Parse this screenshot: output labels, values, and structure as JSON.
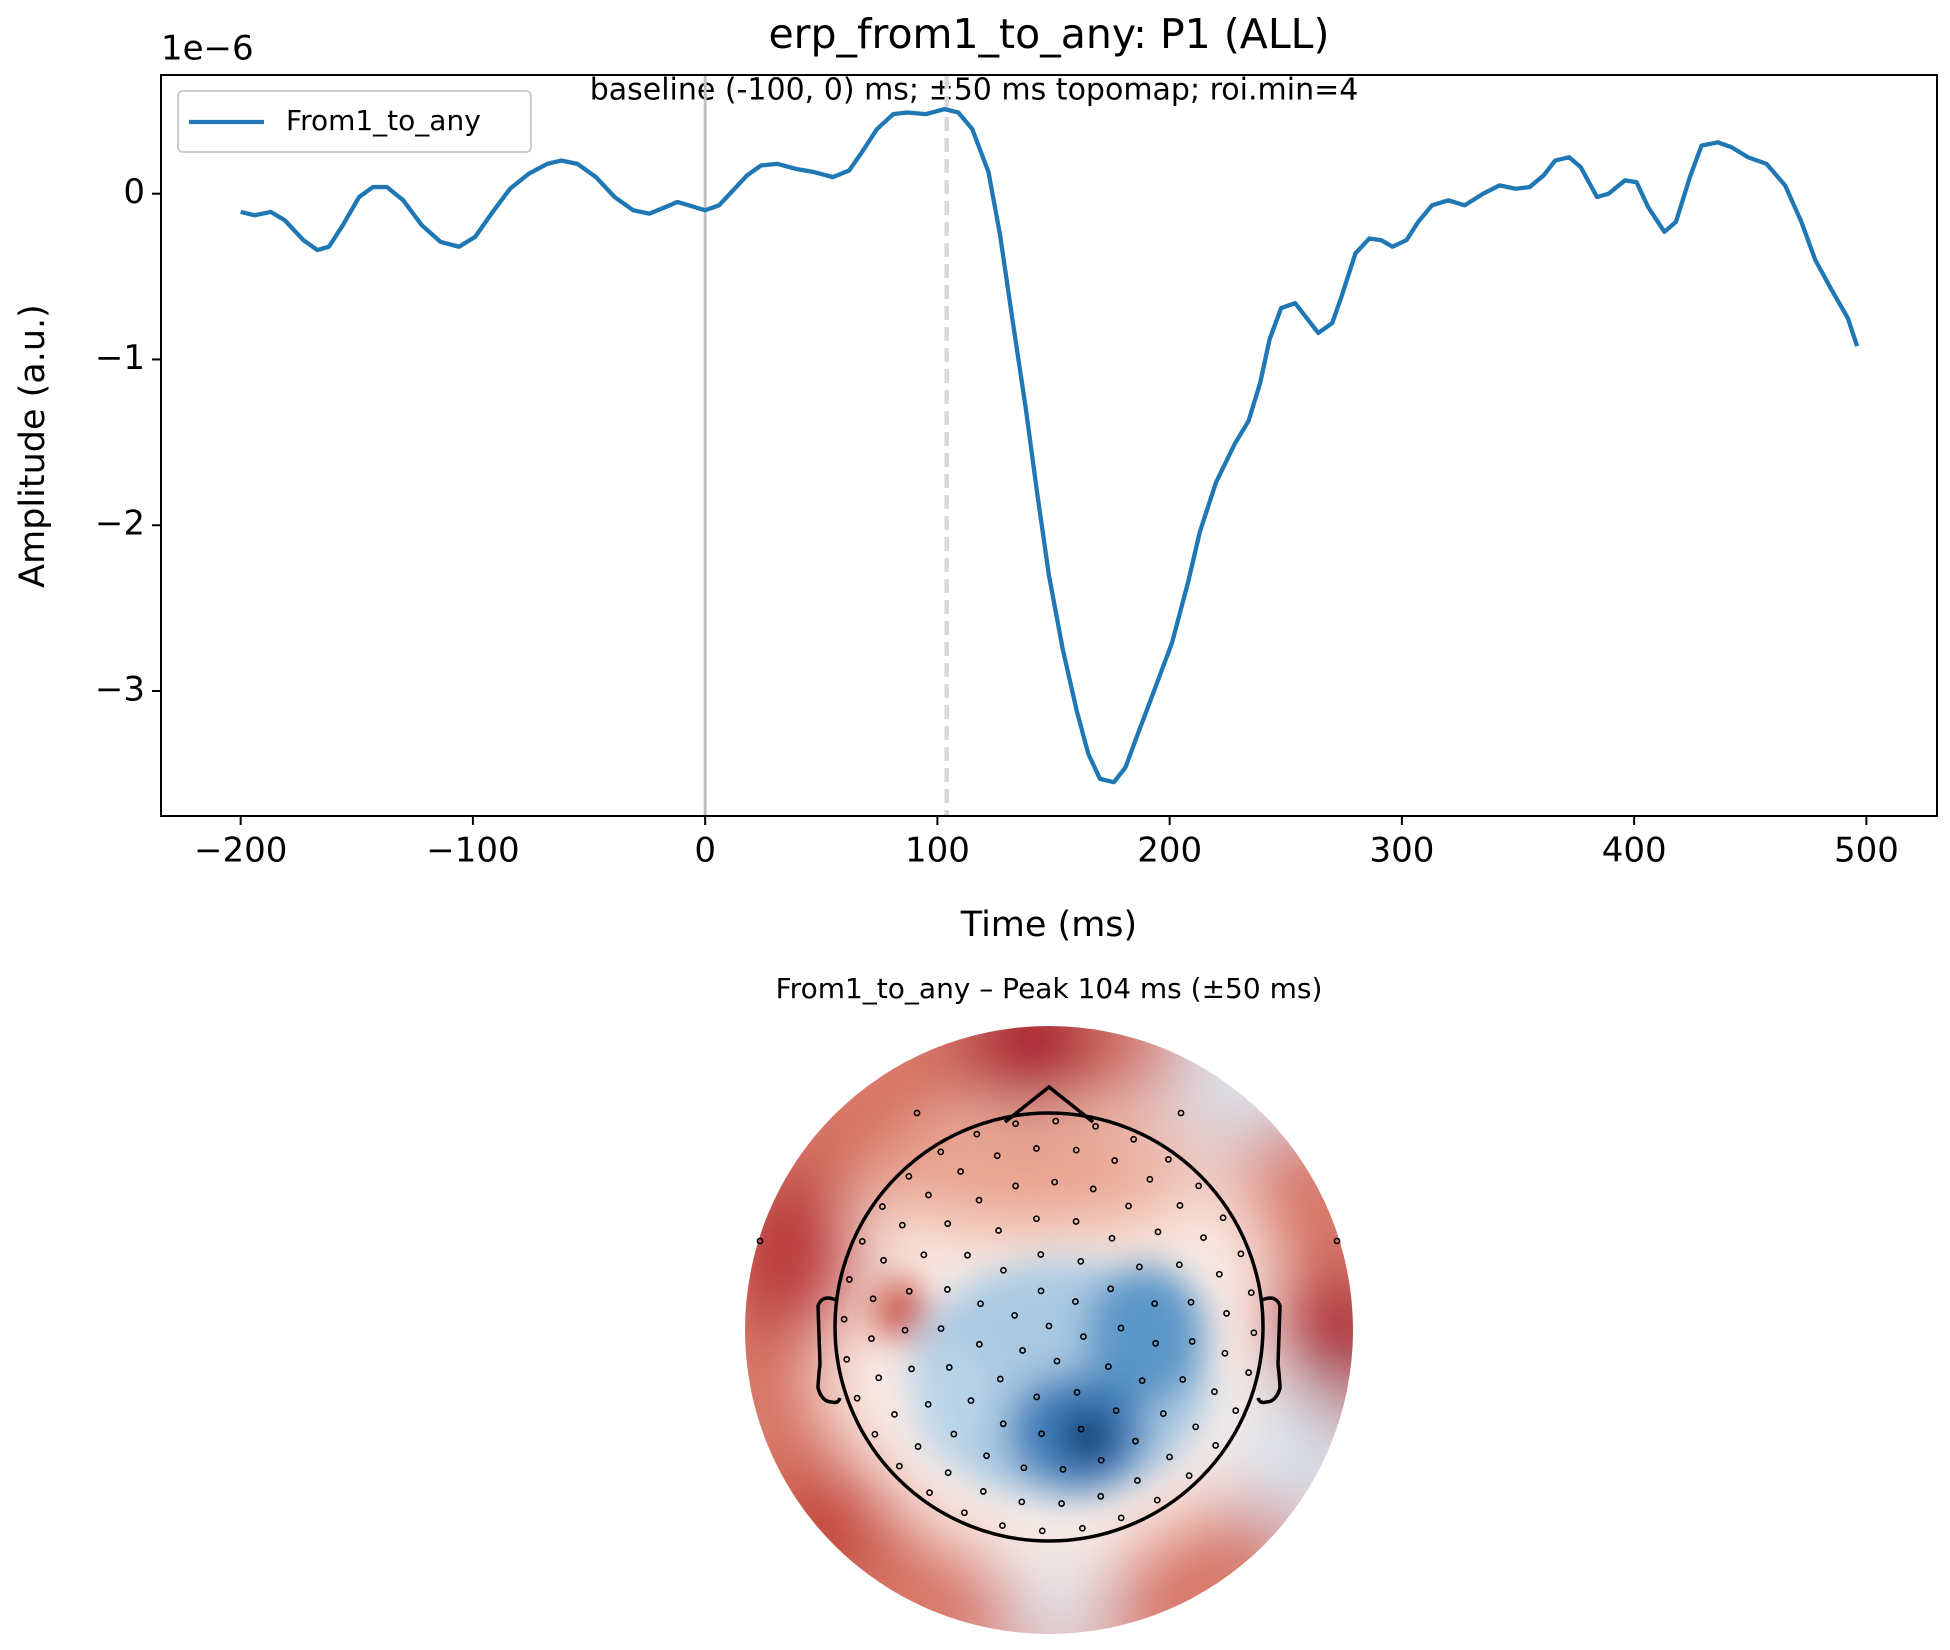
{
  "chart_data": [
    {
      "type": "line",
      "title": "erp_from1_to_any: P1 (ALL)",
      "subtitle": "baseline (-100, 0) ms; ±50 ms topomap; roi.min=4",
      "x_label": "Time (ms)",
      "y_label": "Amplitude (a.u.)",
      "y_offset_label": "1e−6",
      "x": [
        -200,
        -194,
        -187,
        -181,
        -173,
        -167,
        -162,
        -156,
        -149,
        -143,
        -137,
        -130,
        -122,
        -114,
        -106,
        -99,
        -92,
        -84,
        -76,
        -68,
        -62,
        -55,
        -47,
        -39,
        -31,
        -24,
        -17,
        -12,
        -7,
        0,
        6,
        12,
        18,
        24,
        31,
        39,
        47,
        55,
        62,
        67,
        74,
        81,
        87,
        95,
        103,
        109,
        115,
        122,
        127,
        132,
        138,
        143,
        148,
        154,
        160,
        165,
        170,
        176,
        181,
        186,
        193,
        201,
        208,
        213,
        220,
        228,
        234,
        239,
        243,
        248,
        254,
        259,
        264,
        270,
        274,
        280,
        286,
        291,
        296,
        302,
        307,
        313,
        320,
        327,
        335,
        342,
        349,
        355,
        361,
        366,
        372,
        377,
        384,
        389,
        396,
        401,
        406,
        413,
        418,
        424,
        429,
        436,
        442,
        449,
        457,
        465,
        472,
        478,
        485,
        492,
        496
      ],
      "series": [
        {
          "name": "From1_to_any",
          "color": "#1f77b4",
          "values": [
            -0.11,
            -0.13,
            -0.11,
            -0.16,
            -0.28,
            -0.34,
            -0.32,
            -0.19,
            -0.02,
            0.04,
            0.04,
            -0.04,
            -0.19,
            -0.29,
            -0.32,
            -0.26,
            -0.12,
            0.03,
            0.12,
            0.18,
            0.2,
            0.18,
            0.1,
            -0.02,
            -0.1,
            -0.12,
            -0.08,
            -0.05,
            -0.07,
            -0.1,
            -0.07,
            0.02,
            0.11,
            0.17,
            0.18,
            0.15,
            0.13,
            0.1,
            0.14,
            0.24,
            0.39,
            0.48,
            0.49,
            0.48,
            0.51,
            0.49,
            0.39,
            0.13,
            -0.25,
            -0.73,
            -1.29,
            -1.81,
            -2.3,
            -2.75,
            -3.12,
            -3.38,
            -3.53,
            -3.55,
            -3.46,
            -3.27,
            -3.01,
            -2.71,
            -2.34,
            -2.04,
            -1.74,
            -1.51,
            -1.37,
            -1.14,
            -0.88,
            -0.69,
            -0.66,
            -0.75,
            -0.84,
            -0.78,
            -0.62,
            -0.36,
            -0.27,
            -0.28,
            -0.32,
            -0.28,
            -0.17,
            -0.07,
            -0.04,
            -0.07,
            0.0,
            0.05,
            0.03,
            0.04,
            0.11,
            0.2,
            0.22,
            0.16,
            -0.02,
            0.0,
            0.08,
            0.07,
            -0.08,
            -0.23,
            -0.17,
            0.1,
            0.29,
            0.31,
            0.28,
            0.22,
            0.18,
            0.05,
            -0.17,
            -0.4,
            -0.58,
            -0.75,
            -0.92
          ]
        }
      ],
      "xlim": [
        -234.3,
        530.4
      ],
      "ylim": [
        -3.754,
        0.716
      ],
      "xticks": [
        {
          "value": -200,
          "label": "−200"
        },
        {
          "value": -100,
          "label": "−100"
        },
        0,
        100,
        200,
        300,
        400,
        500
      ],
      "yticks": [
        {
          "value": -3,
          "label": "−3"
        },
        {
          "value": -2,
          "label": "−2"
        },
        {
          "value": -1,
          "label": "−1"
        },
        0
      ],
      "vlines": [
        {
          "x": 0,
          "color": "#bfbfbf",
          "dashed": false
        },
        {
          "x": 104,
          "color": "#d9d9d9",
          "dashed": true
        }
      ],
      "legend": "upper left",
      "grid": false
    },
    {
      "type": "topomap",
      "title": "From1_to_any – Peak 104 ms (±50 ms)"
    }
  ]
}
